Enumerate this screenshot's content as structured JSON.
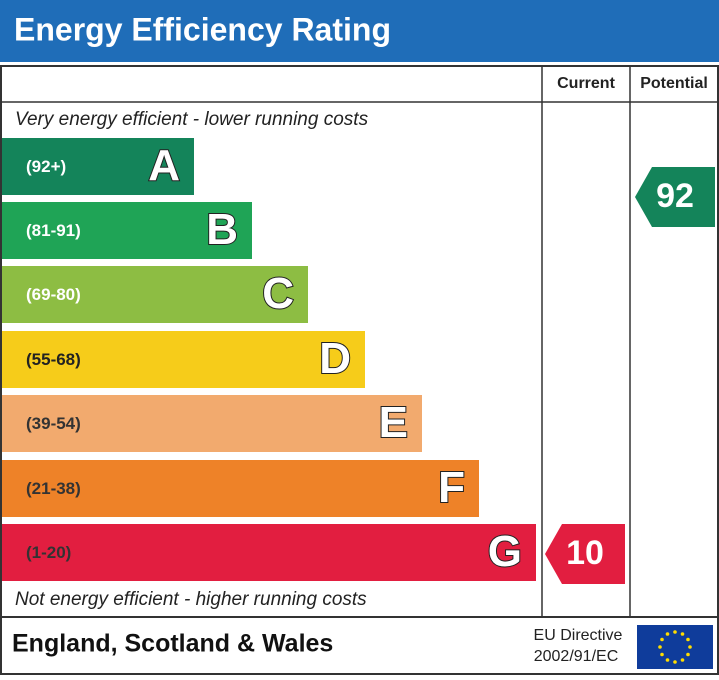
{
  "header": {
    "title": "Energy Efficiency Rating"
  },
  "columns": [
    "Current",
    "Potential"
  ],
  "top_note": "Very energy efficient - lower running costs",
  "bottom_note": "Not energy efficient - higher running costs",
  "bands": [
    {
      "range": "(92+)",
      "letter": "A",
      "color": "#14845a"
    },
    {
      "range": "(81-91)",
      "letter": "B",
      "color": "#1fa456"
    },
    {
      "range": "(69-80)",
      "letter": "C",
      "color": "#8dbd43"
    },
    {
      "range": "(55-68)",
      "letter": "D",
      "color": "#f6cc1a"
    },
    {
      "range": "(39-54)",
      "letter": "E",
      "color": "#f2aa6e"
    },
    {
      "range": "(21-38)",
      "letter": "F",
      "color": "#ee8228"
    },
    {
      "range": "(1-20)",
      "letter": "G",
      "color": "#e21e40"
    }
  ],
  "current": {
    "value": 10,
    "color": "#e21e40"
  },
  "potential": {
    "value": 92,
    "color": "#14845a"
  },
  "footer": {
    "region": "England, Scotland & Wales",
    "directive": [
      "EU Directive",
      "2002/91/EC"
    ]
  }
}
